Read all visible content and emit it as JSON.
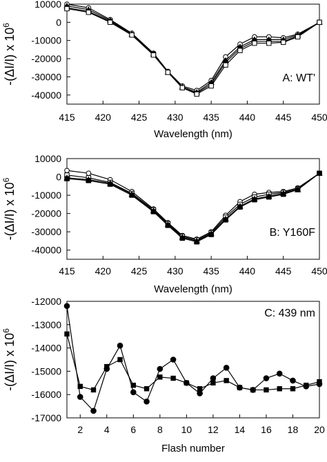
{
  "ylabel_parts": [
    "-(ΔI/I) x 10",
    "6"
  ],
  "chart_data": [
    {
      "type": "line",
      "panel_label": "A: WT'",
      "xlabel": "Wavelength (nm)",
      "xlim": [
        415,
        450
      ],
      "ylim": [
        -45000,
        10000
      ],
      "xticks": [
        415,
        420,
        425,
        430,
        435,
        440,
        445,
        450
      ],
      "yticks": [
        10000,
        0,
        -10000,
        -20000,
        -30000,
        -40000
      ],
      "x": [
        415,
        418,
        421,
        424,
        427,
        429,
        431,
        433,
        435,
        437,
        439,
        441,
        443,
        445,
        447,
        450
      ],
      "series": [
        {
          "marker": "open-circle",
          "values": [
            10000,
            8000,
            1500,
            -6000,
            -17000,
            -27000,
            -35000,
            -37500,
            -32000,
            -19000,
            -12000,
            -8000,
            -8000,
            -8500,
            -6500,
            0
          ]
        },
        {
          "marker": "filled-triangle",
          "values": [
            9000,
            7000,
            1000,
            -6500,
            -17500,
            -27500,
            -35500,
            -38500,
            -33000,
            -21000,
            -13500,
            -9500,
            -9500,
            -9500,
            -7000,
            0
          ]
        },
        {
          "marker": "filled-square",
          "values": [
            8000,
            6000,
            500,
            -7000,
            -17500,
            -27500,
            -36000,
            -39000,
            -34000,
            -22000,
            -14500,
            -10500,
            -10500,
            -10500,
            -7500,
            0
          ]
        },
        {
          "marker": "open-square",
          "values": [
            7500,
            5500,
            0,
            -7000,
            -18000,
            -27500,
            -36000,
            -39500,
            -35000,
            -23500,
            -15500,
            -11500,
            -11500,
            -11000,
            -8000,
            0
          ]
        }
      ]
    },
    {
      "type": "line",
      "panel_label": "B: Y160F",
      "xlabel": "Wavelength (nm)",
      "xlim": [
        415,
        450
      ],
      "ylim": [
        -45000,
        10000
      ],
      "xticks": [
        415,
        420,
        425,
        430,
        435,
        440,
        445,
        450
      ],
      "yticks": [
        10000,
        0,
        -10000,
        -20000,
        -30000,
        -40000
      ],
      "x": [
        415,
        418,
        421,
        424,
        427,
        429,
        431,
        433,
        435,
        437,
        439,
        441,
        443,
        445,
        447,
        450
      ],
      "series": [
        {
          "marker": "open-circle",
          "values": [
            3500,
            2000,
            -1500,
            -8000,
            -17500,
            -25000,
            -32000,
            -34000,
            -30000,
            -21000,
            -13500,
            -9500,
            -8500,
            -8000,
            -6000,
            2000
          ]
        },
        {
          "marker": "open-square",
          "values": [
            1000,
            -500,
            -3000,
            -9000,
            -18000,
            -25500,
            -32500,
            -34500,
            -30500,
            -22000,
            -15000,
            -11000,
            -9500,
            -8500,
            -6500,
            2000
          ]
        },
        {
          "marker": "filled-triangle",
          "values": [
            -500,
            -1500,
            -3500,
            -9500,
            -18500,
            -26000,
            -33000,
            -35000,
            -31000,
            -23000,
            -16000,
            -12000,
            -10500,
            -9000,
            -7000,
            2000
          ]
        },
        {
          "marker": "filled-square",
          "values": [
            -1000,
            -2000,
            -4000,
            -10000,
            -19000,
            -26500,
            -33500,
            -35500,
            -31500,
            -23500,
            -16500,
            -12500,
            -11000,
            -9500,
            -7000,
            2000
          ]
        }
      ]
    },
    {
      "type": "line",
      "panel_label": "C: 439 nm",
      "xlabel": "Flash number",
      "xlim": [
        1,
        20
      ],
      "ylim": [
        -17000,
        -12000
      ],
      "xticks": [
        2,
        4,
        6,
        8,
        10,
        12,
        14,
        16,
        18,
        20
      ],
      "yticks": [
        -12000,
        -13000,
        -14000,
        -15000,
        -16000,
        -17000
      ],
      "x": [
        1,
        2,
        3,
        4,
        5,
        6,
        7,
        8,
        9,
        10,
        11,
        12,
        13,
        14,
        15,
        16,
        17,
        18,
        19,
        20
      ],
      "series": [
        {
          "marker": "filled-circle",
          "values": [
            -12200,
            -16100,
            -16700,
            -14900,
            -13900,
            -15900,
            -16300,
            -14900,
            -14500,
            -15500,
            -15950,
            -15300,
            -14850,
            -15700,
            -15800,
            -15300,
            -15100,
            -15400,
            -15650,
            -15550
          ]
        },
        {
          "marker": "filled-square",
          "values": [
            -13400,
            -15650,
            -15800,
            -14800,
            -14500,
            -15600,
            -15750,
            -15250,
            -15300,
            -15500,
            -15750,
            -15500,
            -15400,
            -15700,
            -15800,
            -15800,
            -15750,
            -15750,
            -15600,
            -15450
          ]
        }
      ]
    }
  ]
}
